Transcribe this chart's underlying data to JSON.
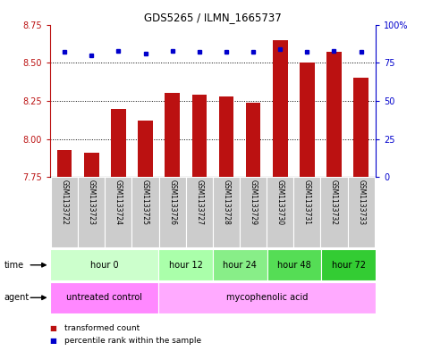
{
  "title": "GDS5265 / ILMN_1665737",
  "samples": [
    "GSM1133722",
    "GSM1133723",
    "GSM1133724",
    "GSM1133725",
    "GSM1133726",
    "GSM1133727",
    "GSM1133728",
    "GSM1133729",
    "GSM1133730",
    "GSM1133731",
    "GSM1133732",
    "GSM1133733"
  ],
  "transformed_count": [
    7.93,
    7.91,
    8.2,
    8.12,
    8.3,
    8.29,
    8.28,
    8.24,
    8.65,
    8.5,
    8.57,
    8.4
  ],
  "percentile_rank": [
    82,
    80,
    83,
    81,
    83,
    82,
    82,
    82,
    84,
    82,
    83,
    82
  ],
  "ylim_left": [
    7.75,
    8.75
  ],
  "ylim_right": [
    0,
    100
  ],
  "yticks_left": [
    7.75,
    8.0,
    8.25,
    8.5,
    8.75
  ],
  "yticks_right": [
    0,
    25,
    50,
    75,
    100
  ],
  "ytick_labels_right": [
    "0",
    "25",
    "50",
    "75",
    "100%"
  ],
  "bar_color": "#BB1111",
  "dot_color": "#0000CC",
  "bar_bottom": 7.75,
  "time_groups": [
    {
      "label": "hour 0",
      "start": 0,
      "end": 4,
      "color": "#CCFFCC"
    },
    {
      "label": "hour 12",
      "start": 4,
      "end": 6,
      "color": "#AAFFAA"
    },
    {
      "label": "hour 24",
      "start": 6,
      "end": 8,
      "color": "#88EE88"
    },
    {
      "label": "hour 48",
      "start": 8,
      "end": 10,
      "color": "#55DD55"
    },
    {
      "label": "hour 72",
      "start": 10,
      "end": 12,
      "color": "#33CC33"
    }
  ],
  "agent_groups": [
    {
      "label": "untreated control",
      "start": 0,
      "end": 4,
      "color": "#FF88FF"
    },
    {
      "label": "mycophenolic acid",
      "start": 4,
      "end": 12,
      "color": "#FFAAFF"
    }
  ],
  "legend_items": [
    {
      "label": "transformed count",
      "color": "#BB1111"
    },
    {
      "label": "percentile rank within the sample",
      "color": "#0000CC"
    }
  ],
  "background_color": "#ffffff",
  "sample_bg_color": "#CCCCCC",
  "left_axis_color": "#BB1111",
  "right_axis_color": "#0000CC",
  "grid_yticks": [
    8.0,
    8.25,
    8.5
  ]
}
